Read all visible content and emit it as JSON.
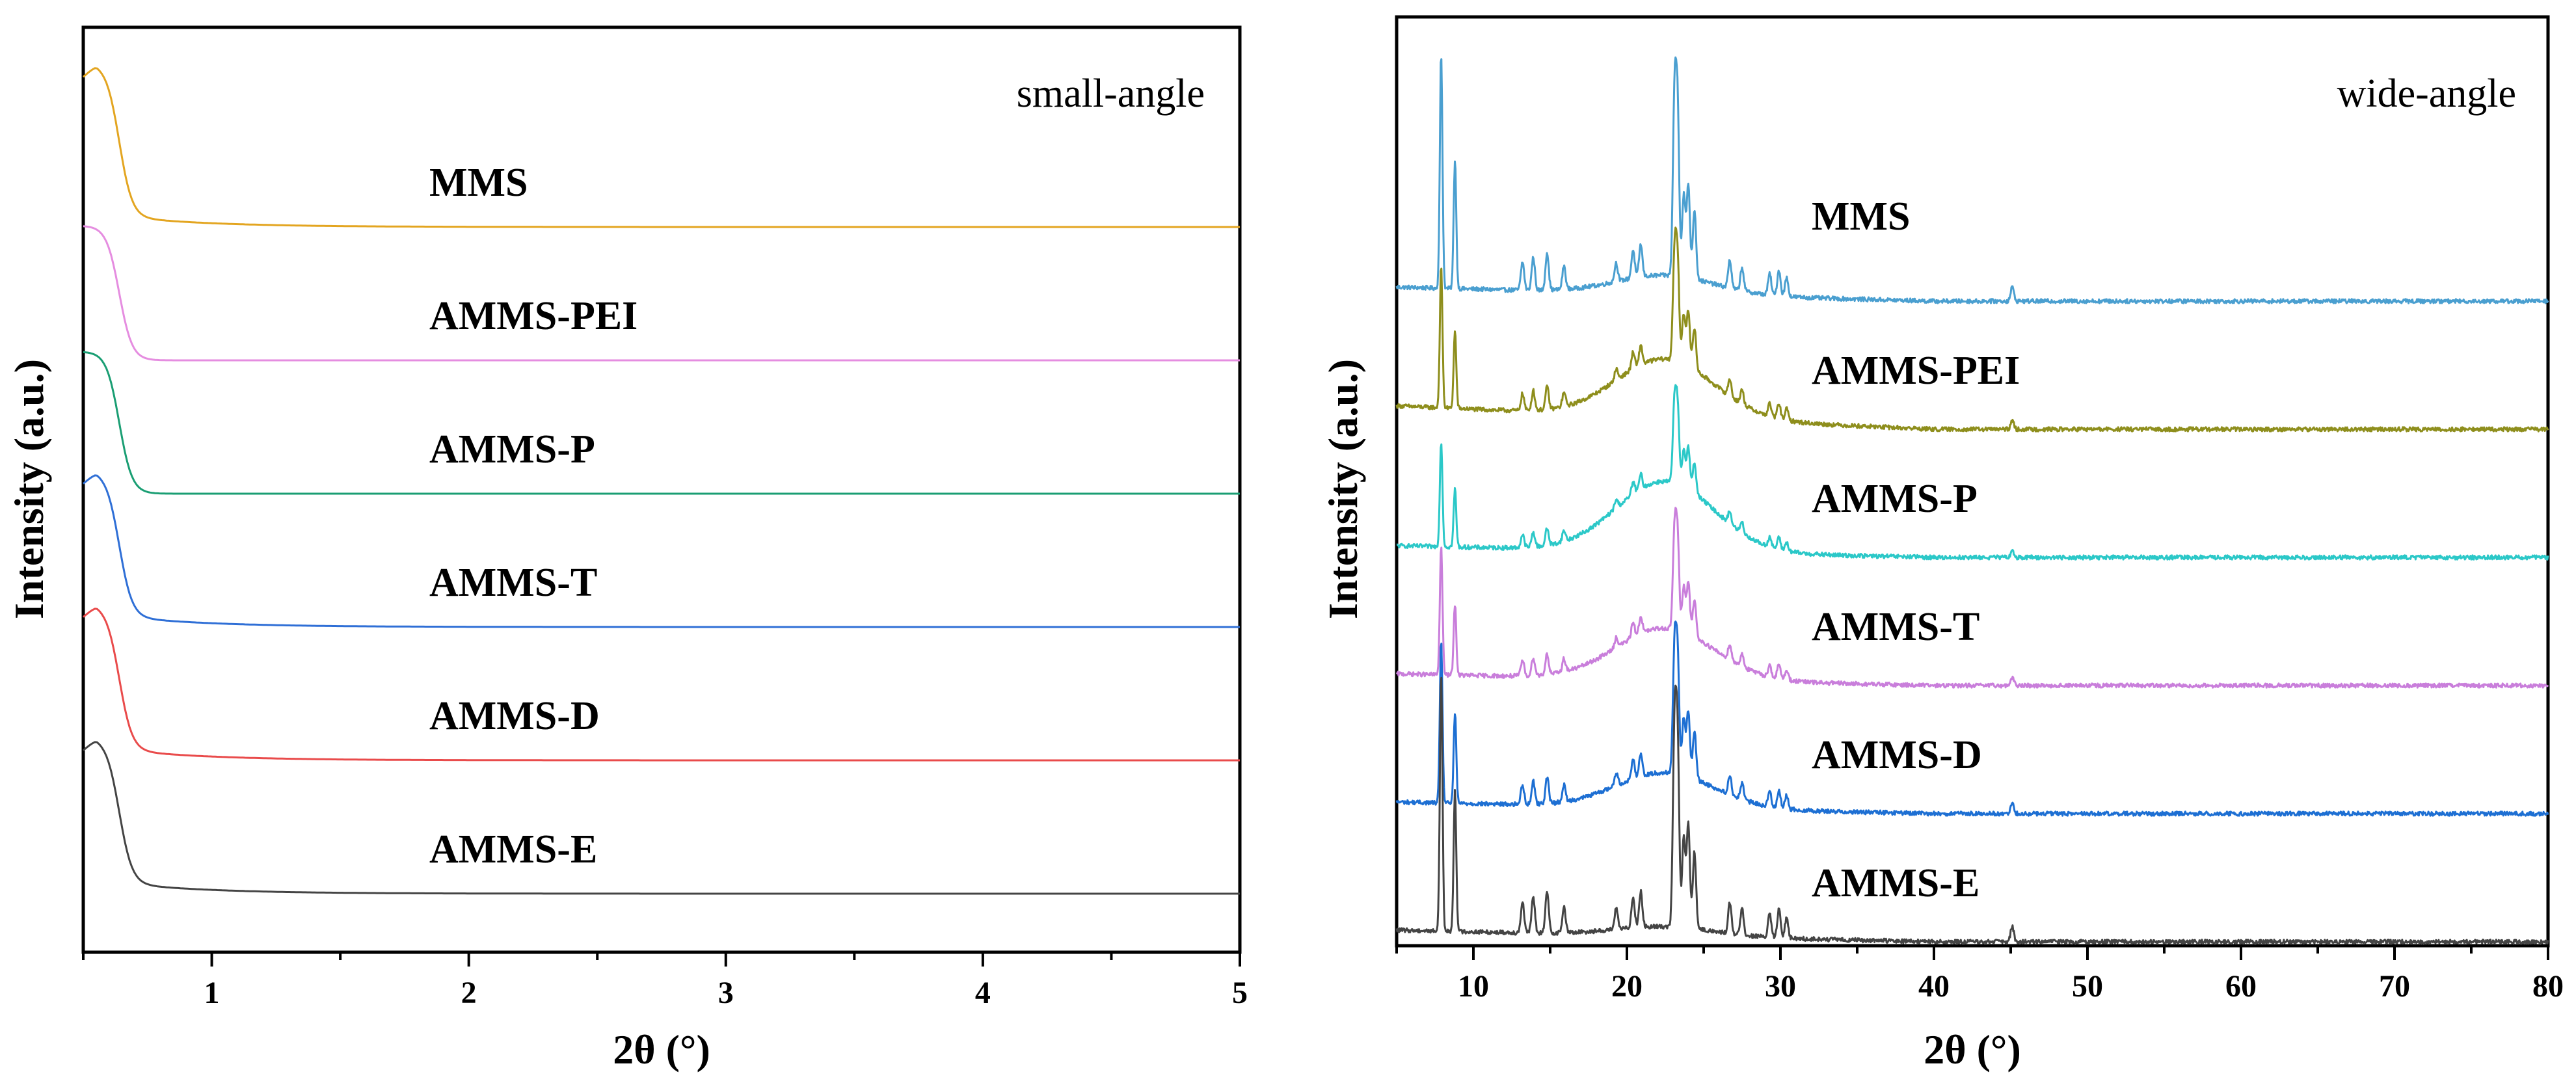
{
  "chart_data": [
    {
      "type": "line",
      "panel_label": "small-angle",
      "xlabel": "2θ (°)",
      "ylabel": "Intensity (a.u.)",
      "xlim": [
        0.5,
        5
      ],
      "xticks": [
        1,
        2,
        3,
        4,
        5
      ],
      "yticks_shown": false,
      "grid": false,
      "legend": "inline labels above each curve",
      "series": [
        {
          "name": "MMS",
          "color": "#E3A520",
          "offset": 5,
          "peak_x": 0.55,
          "peak_height": 1.0,
          "baseline_tail": 0.02
        },
        {
          "name": "AMMS-PEI",
          "color": "#E58DE0",
          "offset": 4,
          "peak_x": 0.5,
          "peak_height": 0.9,
          "baseline_tail": 0.0
        },
        {
          "name": "AMMS-P",
          "color": "#1A9E73",
          "offset": 3,
          "peak_x": 0.5,
          "peak_height": 0.95,
          "baseline_tail": 0.0
        },
        {
          "name": "AMMS-T",
          "color": "#2F6FD6",
          "offset": 2,
          "peak_x": 0.55,
          "peak_height": 0.95,
          "baseline_tail": 0.02
        },
        {
          "name": "AMMS-D",
          "color": "#E94B4B",
          "offset": 1,
          "peak_x": 0.55,
          "peak_height": 0.95,
          "baseline_tail": 0.02
        },
        {
          "name": "AMMS-E",
          "color": "#444444",
          "offset": 0,
          "peak_x": 0.55,
          "peak_height": 0.95,
          "baseline_tail": 0.02
        }
      ]
    },
    {
      "type": "line",
      "panel_label": "wide-angle",
      "xlabel": "2θ (°)",
      "ylabel": "Intensity (a.u.)",
      "xlim": [
        5,
        80
      ],
      "xticks": [
        10,
        20,
        30,
        40,
        50,
        60,
        70,
        80
      ],
      "yticks_shown": false,
      "grid": false,
      "legend": "inline labels above each curve",
      "reflections_2theta": [
        7.9,
        8.8,
        13.2,
        13.9,
        14.8,
        15.9,
        19.3,
        20.4,
        20.9,
        23.1,
        23.3,
        23.7,
        24.0,
        24.4,
        26.7,
        27.5,
        29.3,
        29.9,
        30.4,
        45.1
      ],
      "series": [
        {
          "name": "MMS",
          "color": "#4A9FD0",
          "offset": 5,
          "peak_scale": 1.0,
          "hump_height": 0.08,
          "baseline_tilt": 0.06
        },
        {
          "name": "AMMS-PEI",
          "color": "#8E8E1C",
          "offset": 4,
          "peak_scale": 0.6,
          "hump_height": 0.25,
          "baseline_tilt": 0.1
        },
        {
          "name": "AMMS-P",
          "color": "#2BC8C8",
          "offset": 3,
          "peak_scale": 0.45,
          "hump_height": 0.3,
          "baseline_tilt": 0.05
        },
        {
          "name": "AMMS-T",
          "color": "#C97EDB",
          "offset": 2,
          "peak_scale": 0.55,
          "hump_height": 0.22,
          "baseline_tilt": 0.05
        },
        {
          "name": "AMMS-D",
          "color": "#1D6FD3",
          "offset": 1,
          "peak_scale": 0.7,
          "hump_height": 0.15,
          "baseline_tilt": 0.05
        },
        {
          "name": "AMMS-E",
          "color": "#444444",
          "offset": 0,
          "peak_scale": 1.1,
          "hump_height": 0.04,
          "baseline_tilt": 0.05
        }
      ]
    }
  ]
}
